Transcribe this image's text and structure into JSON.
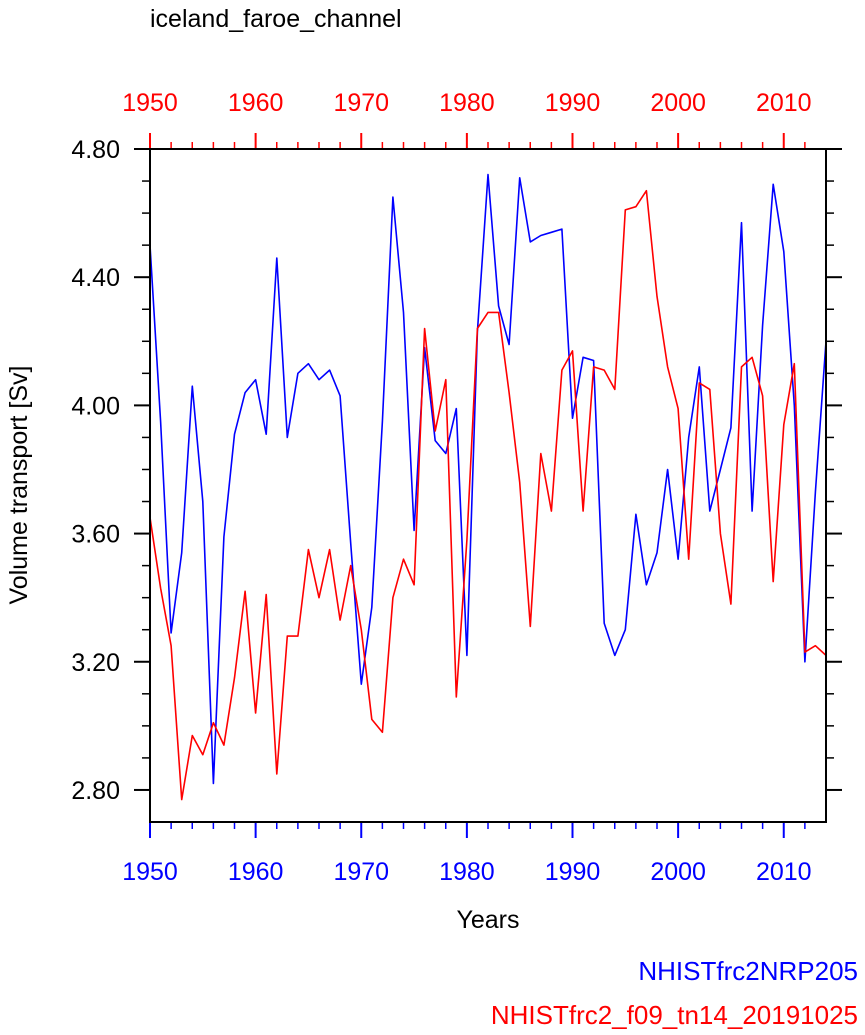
{
  "chart_data": {
    "type": "line",
    "title": "iceland_faroe_channel",
    "xlabel": "Years",
    "ylabel": "Volume transport [Sv]",
    "xlim": [
      1950,
      2014
    ],
    "ylim": [
      2.7,
      4.8
    ],
    "x_ticks": [
      1950,
      1960,
      1970,
      1980,
      1990,
      2000,
      2010
    ],
    "x_tick_labels": [
      "1950",
      "1960",
      "1970",
      "1980",
      "1990",
      "2000",
      "2010"
    ],
    "y_ticks": [
      2.8,
      3.2,
      3.6,
      4.0,
      4.4,
      4.8
    ],
    "y_tick_labels": [
      "2.80",
      "3.20",
      "3.60",
      "4.00",
      "4.40",
      "4.80"
    ],
    "x": [
      1950,
      1951,
      1952,
      1953,
      1954,
      1955,
      1956,
      1957,
      1958,
      1959,
      1960,
      1961,
      1962,
      1963,
      1964,
      1965,
      1966,
      1967,
      1968,
      1969,
      1970,
      1971,
      1972,
      1973,
      1974,
      1975,
      1976,
      1977,
      1978,
      1979,
      1980,
      1981,
      1982,
      1983,
      1984,
      1985,
      1986,
      1987,
      1988,
      1989,
      1990,
      1991,
      1992,
      1993,
      1994,
      1995,
      1996,
      1997,
      1998,
      1999,
      2000,
      2001,
      2002,
      2003,
      2004,
      2005,
      2006,
      2007,
      2008,
      2009,
      2010,
      2011,
      2012,
      2013,
      2014
    ],
    "series": [
      {
        "name": "NHISTfrc2NRP205",
        "color": "#0000ff",
        "values": [
          4.5,
          3.95,
          3.29,
          3.54,
          4.06,
          3.7,
          2.82,
          3.59,
          3.91,
          4.04,
          4.08,
          3.91,
          4.46,
          3.9,
          4.1,
          4.13,
          4.08,
          4.11,
          4.03,
          3.57,
          3.13,
          3.37,
          3.95,
          4.65,
          4.29,
          3.61,
          4.18,
          3.89,
          3.85,
          3.99,
          3.22,
          4.23,
          4.72,
          4.31,
          4.19,
          4.71,
          4.51,
          4.53,
          4.54,
          4.55,
          3.96,
          4.15,
          4.14,
          3.32,
          3.22,
          3.3,
          3.66,
          3.44,
          3.54,
          3.8,
          3.52,
          3.9,
          4.12,
          3.67,
          3.8,
          3.93,
          4.57,
          3.67,
          4.25,
          4.69,
          4.48,
          4.0,
          3.2,
          3.73,
          4.2
        ]
      },
      {
        "name": "NHISTfrc2_f09_tn14_20191025",
        "color": "#ff0000",
        "values": [
          3.65,
          3.43,
          3.25,
          2.77,
          2.97,
          2.91,
          3.01,
          2.94,
          3.15,
          3.42,
          3.04,
          3.41,
          2.85,
          3.28,
          3.28,
          3.55,
          3.4,
          3.55,
          3.33,
          3.5,
          3.3,
          3.02,
          2.98,
          3.4,
          3.52,
          3.44,
          4.24,
          3.92,
          4.08,
          3.09,
          3.58,
          4.24,
          4.29,
          4.29,
          4.04,
          3.76,
          3.31,
          3.85,
          3.67,
          4.11,
          4.17,
          3.67,
          4.12,
          4.11,
          4.05,
          4.61,
          4.62,
          4.67,
          4.34,
          4.12,
          3.99,
          3.52,
          4.07,
          4.05,
          3.6,
          3.38,
          4.12,
          4.15,
          4.03,
          3.45,
          3.94,
          4.13,
          3.23,
          3.25,
          3.22
        ]
      }
    ]
  }
}
